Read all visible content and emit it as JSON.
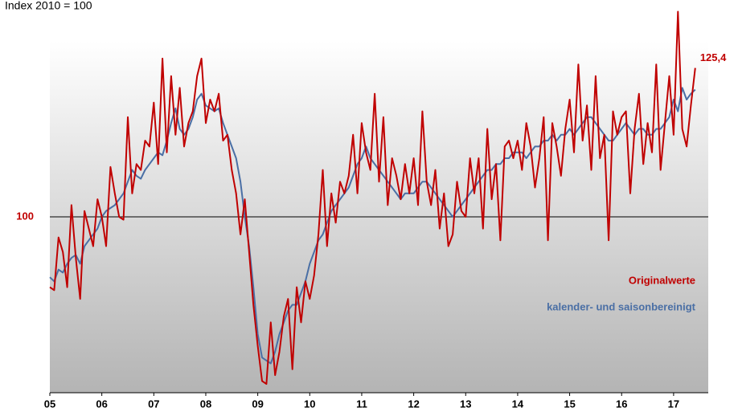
{
  "chart_data": {
    "type": "line",
    "title": "Index 2010 = 100",
    "x": [
      0,
      1,
      2,
      3,
      4,
      5,
      6,
      7,
      8,
      9,
      10,
      11,
      12,
      13,
      14,
      15,
      16,
      17,
      18,
      19,
      20,
      21,
      22,
      23,
      24,
      25,
      26,
      27,
      28,
      29,
      30,
      31,
      32,
      33,
      34,
      35,
      36,
      37,
      38,
      39,
      40,
      41,
      42,
      43,
      44,
      45,
      46,
      47,
      48,
      49,
      50,
      51,
      52,
      53,
      54,
      55,
      56,
      57,
      58,
      59,
      60,
      61,
      62,
      63,
      64,
      65,
      66,
      67,
      68,
      69,
      70,
      71,
      72,
      73,
      74,
      75,
      76,
      77,
      78,
      79,
      80,
      81,
      82,
      83,
      84,
      85,
      86,
      87,
      88,
      89,
      90,
      91,
      92,
      93,
      94,
      95,
      96,
      97,
      98,
      99,
      100,
      101,
      102,
      103,
      104,
      105,
      106,
      107,
      108,
      109,
      110,
      111,
      112,
      113,
      114,
      115,
      116,
      117,
      118,
      119,
      120,
      121,
      122,
      123,
      124,
      125,
      126,
      127,
      128,
      129,
      130,
      131,
      132,
      133,
      134,
      135,
      136,
      137,
      138,
      139,
      140,
      141,
      142,
      143,
      144,
      145,
      146,
      147,
      148,
      149
    ],
    "series": [
      {
        "name": "Originalwerte",
        "color": "#c00000",
        "values": [
          88,
          87.5,
          96.5,
          94,
          88,
          102,
          93,
          86,
          101,
          98,
          95,
          103,
          100,
          95,
          108.5,
          104,
          100,
          99.5,
          117,
          104,
          109,
          108,
          113,
          112,
          119.5,
          109,
          127,
          111,
          124,
          114,
          122,
          112,
          116,
          118,
          124,
          127,
          116,
          120,
          118,
          121,
          113,
          114,
          108,
          104,
          97,
          103,
          94,
          85,
          78,
          72,
          71.5,
          82,
          73,
          77,
          83,
          86,
          74,
          88,
          82,
          89,
          86,
          90,
          97,
          108,
          95,
          104,
          99,
          106,
          104,
          107,
          114,
          104,
          116,
          111,
          108,
          121,
          106,
          117,
          102,
          110,
          107,
          103,
          109,
          104,
          110,
          102,
          118,
          106,
          102,
          108,
          98,
          104,
          95,
          97,
          106,
          101,
          100,
          110,
          104,
          110,
          98,
          115,
          103,
          109,
          96,
          112,
          113,
          110,
          113,
          108,
          116,
          112,
          105,
          110,
          117,
          96,
          116,
          112,
          107,
          115,
          120,
          111,
          126,
          113,
          119,
          108,
          124,
          110,
          114,
          96,
          118,
          114,
          117,
          118,
          104,
          115,
          121,
          109,
          116,
          111,
          126,
          108,
          116,
          124,
          114,
          135,
          115,
          112,
          119,
          125.4
        ],
        "value_labels": [
          null,
          null,
          null,
          null,
          null,
          null,
          null,
          null,
          null,
          null,
          null,
          null,
          null,
          null,
          null,
          null,
          null,
          null,
          null,
          null,
          null,
          null,
          null,
          null,
          null,
          null,
          null,
          null,
          null,
          null,
          null,
          null,
          null,
          null,
          null,
          null,
          null,
          null,
          null,
          null,
          null,
          null,
          null,
          null,
          null,
          null,
          null,
          null,
          null,
          null,
          null,
          null,
          null,
          null,
          null,
          null,
          null,
          null,
          null,
          null,
          null,
          null,
          null,
          null,
          null,
          null,
          null,
          null,
          null,
          null,
          null,
          null,
          null,
          null,
          null,
          null,
          null,
          null,
          null,
          null,
          null,
          null,
          null,
          null,
          null,
          null,
          null,
          null,
          null,
          null,
          null,
          null,
          null,
          null,
          null,
          null,
          null,
          null,
          null,
          null,
          null,
          null,
          null,
          null,
          null,
          null,
          null,
          null,
          null,
          null,
          null,
          null,
          null,
          null,
          null,
          null,
          null,
          null,
          null,
          null,
          null,
          null,
          null,
          null,
          null,
          null,
          null,
          null,
          null,
          null,
          null,
          null,
          null,
          null,
          null,
          null,
          null,
          null,
          null,
          null,
          null,
          null,
          null,
          null,
          null,
          null,
          null,
          null,
          null,
          "125,4"
        ]
      },
      {
        "name": "kalender- und saisonbereinigt",
        "color": "#4a6fa5",
        "values": [
          89.7,
          89,
          91,
          90.5,
          92,
          93,
          93.5,
          92,
          95,
          96,
          97,
          98,
          100,
          101,
          101.5,
          102,
          103,
          104,
          106,
          108,
          107,
          106.5,
          108,
          109,
          110,
          111,
          110.5,
          113,
          116,
          118.5,
          115,
          114,
          115,
          117,
          120,
          121,
          119,
          118.5,
          118,
          118.5,
          116,
          114,
          112,
          110,
          106,
          100,
          95,
          88,
          80,
          76,
          75.5,
          75,
          77,
          80,
          82,
          84,
          85,
          85,
          87,
          89,
          92,
          94,
          96,
          97,
          99,
          101,
          102,
          103,
          104,
          105,
          107,
          109,
          110,
          112,
          110,
          109,
          108,
          107,
          106,
          105,
          104,
          103,
          104,
          104,
          104,
          105,
          106,
          106,
          105,
          104,
          103,
          102,
          101,
          100,
          101,
          102,
          103,
          104,
          105,
          106,
          107,
          108,
          108,
          109,
          109,
          110,
          110,
          111,
          111,
          111,
          110,
          111,
          112,
          112,
          113,
          113,
          114,
          113,
          114,
          114,
          115,
          114,
          115,
          116,
          117,
          117,
          116,
          115,
          114,
          113,
          113,
          114,
          115,
          116,
          115,
          114,
          115,
          115,
          114,
          114,
          115,
          115,
          116,
          117,
          120,
          118,
          122,
          120,
          121,
          121.7
        ]
      }
    ],
    "xlim": [
      0,
      152
    ],
    "xticks": [
      {
        "value": 0,
        "label": "05"
      },
      {
        "value": 12,
        "label": "06"
      },
      {
        "value": 24,
        "label": "07"
      },
      {
        "value": 36,
        "label": "08"
      },
      {
        "value": 48,
        "label": "09"
      },
      {
        "value": 60,
        "label": "10"
      },
      {
        "value": 72,
        "label": "11"
      },
      {
        "value": 84,
        "label": "12"
      },
      {
        "value": 96,
        "label": "13"
      },
      {
        "value": 108,
        "label": "14"
      },
      {
        "value": 120,
        "label": "15"
      },
      {
        "value": 132,
        "label": "16"
      },
      {
        "value": 144,
        "label": "17"
      }
    ],
    "ylim": [
      70,
      130
    ],
    "yticks": [
      100
    ]
  }
}
